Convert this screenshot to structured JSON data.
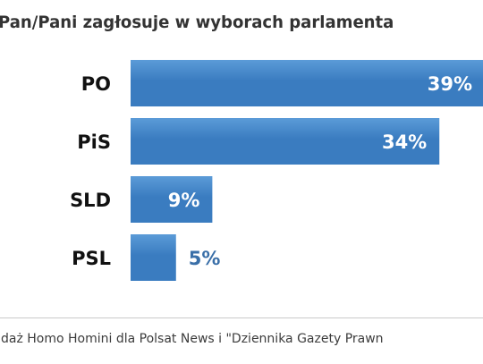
{
  "title": "Pan/Pani zagłosuje w wyborach parlamenta",
  "source": "daż Homo Homini dla Polsat News i \"Dziennika Gazety Prawn",
  "colors": {
    "bar": "#3a7cc0",
    "bar_highlight": "#5b9bd8",
    "value_inside": "#ffffff",
    "value_outside": "#3a6fa8"
  },
  "chart_data": {
    "type": "bar",
    "orientation": "horizontal",
    "title": "Pan/Pani zagłosuje w wyborach parlamenta",
    "categories": [
      "PO",
      "PiS",
      "SLD",
      "PSL"
    ],
    "values": [
      39,
      34,
      9,
      5
    ],
    "value_labels": [
      "39%",
      "34%",
      "9%",
      "5%"
    ],
    "unit": "%",
    "xlim": [
      0,
      39
    ],
    "grid": false,
    "legend": "none"
  }
}
